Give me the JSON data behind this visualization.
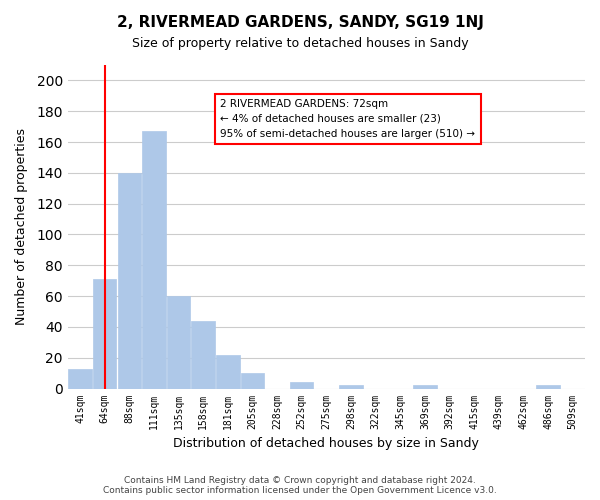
{
  "title": "2, RIVERMEAD GARDENS, SANDY, SG19 1NJ",
  "subtitle": "Size of property relative to detached houses in Sandy",
  "xlabel": "Distribution of detached houses by size in Sandy",
  "ylabel": "Number of detached properties",
  "bar_color": "#aec8e8",
  "bar_edge_color": "#aec8e8",
  "categories": [
    "41sqm",
    "64sqm",
    "88sqm",
    "111sqm",
    "135sqm",
    "158sqm",
    "181sqm",
    "205sqm",
    "228sqm",
    "252sqm",
    "275sqm",
    "298sqm",
    "322sqm",
    "345sqm",
    "369sqm",
    "392sqm",
    "415sqm",
    "439sqm",
    "462sqm",
    "486sqm",
    "509sqm"
  ],
  "values": [
    13,
    71,
    140,
    167,
    60,
    44,
    22,
    10,
    0,
    4,
    0,
    2,
    0,
    0,
    2,
    0,
    0,
    0,
    0,
    2,
    0
  ],
  "ylim": [
    0,
    210
  ],
  "yticks": [
    0,
    20,
    40,
    60,
    80,
    100,
    120,
    140,
    160,
    180,
    200
  ],
  "property_line_x": 1.0,
  "annotation_title": "2 RIVERMEAD GARDENS: 72sqm",
  "annotation_line1": "← 4% of detached houses are smaller (23)",
  "annotation_line2": "95% of semi-detached houses are larger (510) →",
  "footer_line1": "Contains HM Land Registry data © Crown copyright and database right 2024.",
  "footer_line2": "Contains public sector information licensed under the Open Government Licence v3.0.",
  "background_color": "#ffffff",
  "grid_color": "#cccccc"
}
